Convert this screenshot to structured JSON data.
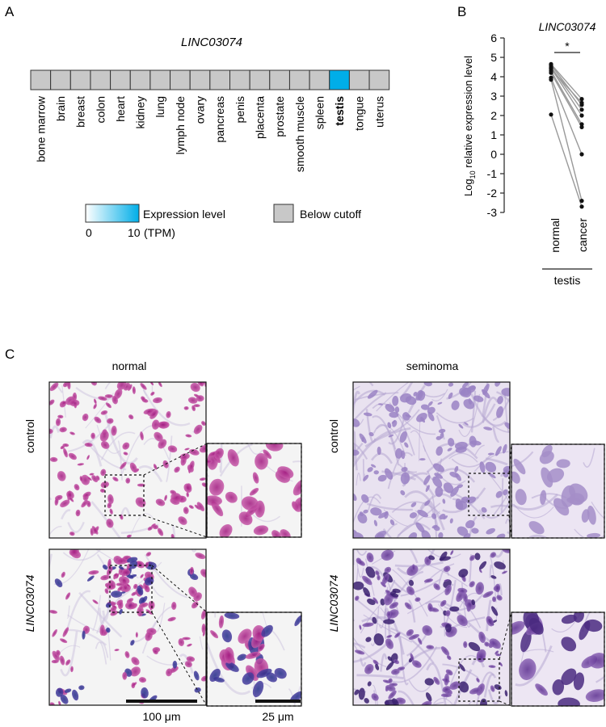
{
  "panel_a": {
    "letter": "A",
    "gene": "LINC03074",
    "tissues": [
      "bone marrow",
      "brain",
      "breast",
      "colon",
      "heart",
      "kidney",
      "lung",
      "lymph node",
      "ovary",
      "pancreas",
      "penis",
      "placenta",
      "prostate",
      "smooth muscle",
      "spleen",
      "testis",
      "tongue",
      "uterus"
    ],
    "highlight_index": 15,
    "colors": {
      "below": "#c8c8c8",
      "highlight": "#00aee8",
      "grad_start": "#ffffff",
      "grad_end": "#00aee8"
    },
    "legend": {
      "expression_label": "Expression level",
      "min": "0",
      "max": "10",
      "unit": "(TPM)",
      "below_label": "Below cutoff"
    }
  },
  "panel_b": {
    "letter": "B",
    "chart_data": {
      "type": "scatter",
      "title": "LINC03074",
      "ylabel_main": "Log",
      "ylabel_sub": "10",
      "ylabel_rest": " relative expression level",
      "categories": [
        "normal",
        "cancer"
      ],
      "group_label": "testis",
      "ylim": [
        -3,
        6
      ],
      "yticks": [
        -3,
        -2,
        -1,
        0,
        1,
        2,
        3,
        4,
        5,
        6
      ],
      "significance": "*",
      "pairs": [
        [
          4.65,
          2.85
        ],
        [
          4.6,
          2.55
        ],
        [
          4.5,
          2.3
        ],
        [
          4.45,
          2.0
        ],
        [
          4.4,
          2.65
        ],
        [
          4.3,
          1.55
        ],
        [
          4.2,
          1.4
        ],
        [
          3.95,
          0.0
        ],
        [
          3.85,
          -2.4
        ],
        [
          2.05,
          -2.7
        ]
      ]
    }
  },
  "panel_c": {
    "letter": "C",
    "columns": [
      "normal",
      "seminoma"
    ],
    "rows": [
      "control",
      "LINC03074"
    ],
    "scalebars": [
      "100 μm",
      "25 μm"
    ]
  }
}
